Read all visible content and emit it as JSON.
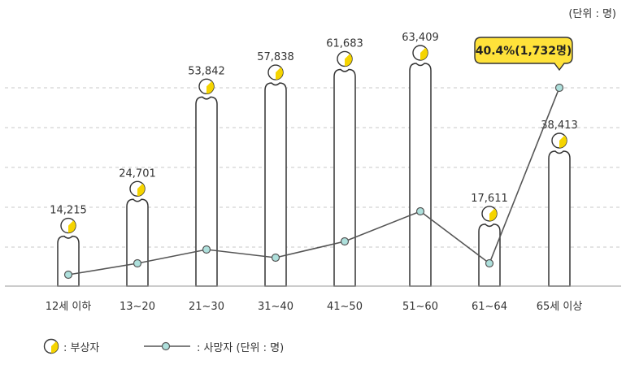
{
  "unit_label": "(단위 : 명)",
  "legend": {
    "injured_label": ": 부상자",
    "deaths_label": ": 사망자 (단위 : 명)"
  },
  "colors": {
    "bar_stroke": "#333333",
    "head_yellow": "#f5d400",
    "line": "#555555",
    "marker_fill": "#aee0dc",
    "callout_fill": "#ffe23a",
    "grid": "#c8c8c8"
  },
  "chart_data": {
    "type": "bar",
    "categories": [
      "12세 이하",
      "13~20",
      "21~30",
      "31~40",
      "41~50",
      "51~60",
      "61~64",
      "65세 이상"
    ],
    "series": [
      {
        "values": [
          14215,
          24701,
          53842,
          57838,
          61683,
          63409,
          17611,
          38413
        ],
        "labels": [
          "14,215",
          "24,701",
          "53,842",
          "57,838",
          "61,683",
          "63,409",
          "17,611",
          "38,413"
        ]
      },
      {
        "type": "line",
        "values": [
          null,
          null,
          null,
          null,
          null,
          null,
          null,
          1732
        ]
      }
    ],
    "callout": "40.4%(1,732명)",
    "grid": true
  }
}
